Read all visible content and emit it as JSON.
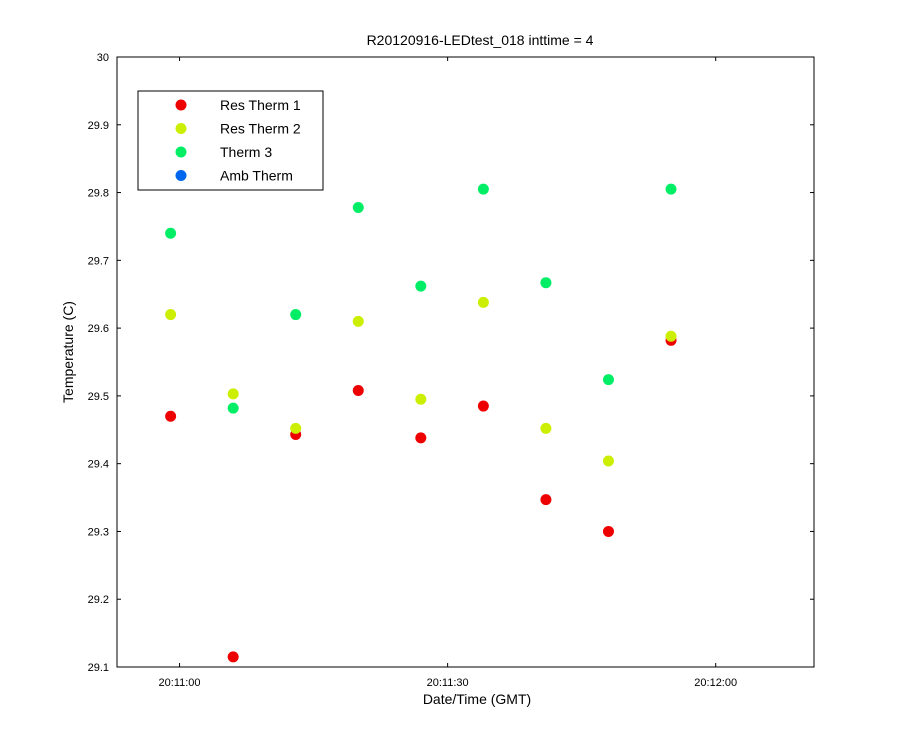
{
  "chart_data": {
    "type": "scatter",
    "title": "R20120916-LEDtest_018 inttime = 4",
    "xlabel": "Date/Time (GMT)",
    "ylabel": "Temperature (C)",
    "xlim": [
      "20:10:53",
      "20:12:11"
    ],
    "ylim": [
      29.1,
      30
    ],
    "x_ticks": [
      "20:11:00",
      "20:11:30",
      "20:12:00"
    ],
    "y_ticks": [
      "29.1",
      "29.2",
      "29.3",
      "29.4",
      "29.5",
      "29.6",
      "29.7",
      "29.8",
      "29.9",
      "30"
    ],
    "grid": false,
    "legend_position": "top-left",
    "x": [
      "20:10:59",
      "20:11:06",
      "20:11:13",
      "20:11:20",
      "20:11:27",
      "20:11:34",
      "20:11:41",
      "20:11:48",
      "20:11:55"
    ],
    "series": [
      {
        "name": "Res Therm 1",
        "color": "#ee0000",
        "values": [
          29.47,
          29.115,
          29.443,
          29.508,
          29.438,
          29.485,
          29.347,
          29.3,
          29.582
        ]
      },
      {
        "name": "Res Therm 2",
        "color": "#ccee00",
        "values": [
          29.62,
          29.503,
          29.452,
          29.61,
          29.495,
          29.638,
          29.452,
          29.404,
          29.588
        ]
      },
      {
        "name": "Therm 3",
        "color": "#00ee66",
        "values": [
          29.74,
          29.482,
          29.62,
          29.778,
          29.662,
          29.805,
          29.667,
          29.524,
          29.805
        ]
      },
      {
        "name": "Amb Therm",
        "color": "#0066ee",
        "values": []
      }
    ]
  }
}
